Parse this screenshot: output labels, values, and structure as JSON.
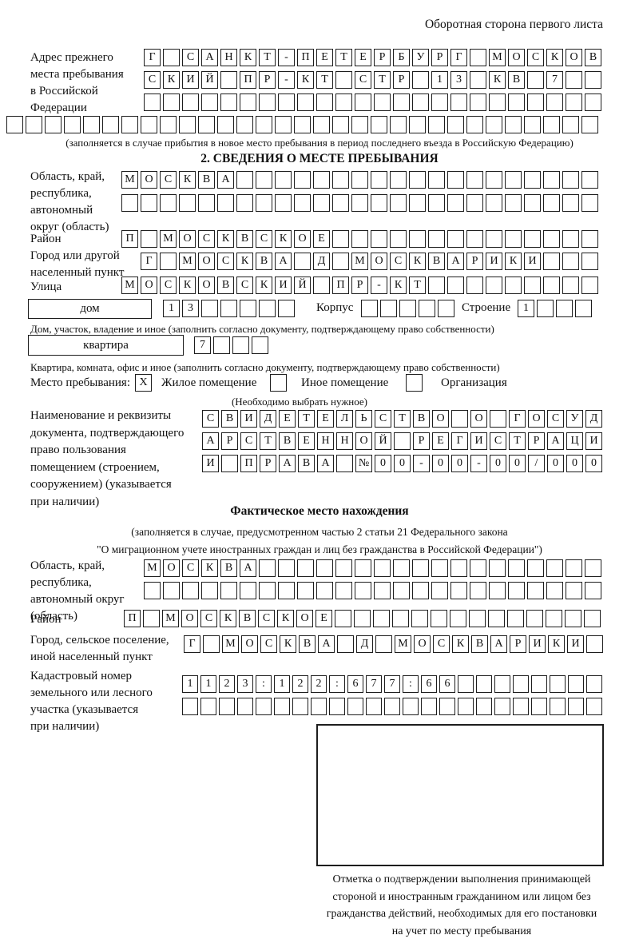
{
  "page": {
    "header_note": "Оборотная сторона первого листа"
  },
  "prev_address": {
    "label": "Адрес прежнего\nместа пребывания\nв Российской\nФедерации",
    "rows": [
      "Г САНКТ-ПЕТЕРБУРГ МОСКОВ",
      "СКИЙ ПР-КТ СТР 13 КВ 7  ",
      "                        ",
      "                               "
    ],
    "note": "(заполняется в случае прибытия в новое место пребывания в период последнего въезда в Российскую Федерацию)"
  },
  "section2": {
    "title": "2. СВЕДЕНИЯ О МЕСТЕ ПРЕБЫВАНИЯ",
    "region": {
      "label": "Область, край,\nреспублика,\nавтономный\nокруг (область)",
      "rows": [
        "МОСКВА                   ",
        "                         "
      ]
    },
    "district": {
      "label": "Район",
      "row": "П МОСКВСКОЕ              "
    },
    "city": {
      "label": "Город или другой\nнаселенный пункт",
      "row": "Г МОСКВА Д МОСКВАРИКИ   "
    },
    "street": {
      "label": "Улица",
      "row": "МОСКОВСКИЙ ПР-КТ         "
    },
    "house": {
      "box_label": "дом",
      "cells": "13     ",
      "korpus_label": "Корпус",
      "korpus_cells": "     ",
      "stroenie_label": "Строение",
      "stroenie_cells": "1   ",
      "note": "Дом, участок, владение и иное (заполнить согласно документу, подтверждающему право собственности)"
    },
    "apartment": {
      "box_label": "квартира",
      "cells": "7   ",
      "note": "Квартира, комната, офис и иное (заполнить согласно документу, подтверждающему право собственности)"
    },
    "stay_type": {
      "label": "Место пребывания:",
      "options": [
        {
          "label": "Жилое помещение",
          "checked": "X"
        },
        {
          "label": "Иное помещение",
          "checked": " "
        },
        {
          "label": "Организация",
          "checked": " "
        }
      ],
      "note": "(Необходимо выбрать нужное)"
    },
    "document": {
      "label": "Наименование и реквизиты\nдокумента, подтверждающего\nправо пользования\nпомещением (строением,\nсооружением) (указывается\nпри наличии)",
      "rows": [
        "СВИДЕТЕЛЬСТВО О ГОСУД",
        "АРСТВЕННОЙ РЕГИСТРАЦИ",
        "И ПРАВА №00-00-00/000"
      ]
    }
  },
  "actual_location": {
    "title": "Фактическое место нахождения",
    "subtitle1": "(заполняется в случае, предусмотренном частью 2 статьи 21 Федерального закона",
    "subtitle2": "\"О миграционном учете иностранных граждан и лиц без гражданства в Российской Федерации\")",
    "region": {
      "label": "Область, край,\nреспублика,\nавтономный округ\n(область)",
      "rows": [
        "МОСКВА                  ",
        "                        "
      ]
    },
    "district": {
      "label": "Район",
      "row": "П МОСКВСКОЕ              "
    },
    "settlement": {
      "label": "Город, сельское поселение,\nиной населенный пункт",
      "row": "Г МОСКВА Д МОСКВАРИКИ "
    },
    "cadastral": {
      "label": "Кадастровый номер\nземельного или лесного\nучастка (указывается\nпри наличии)",
      "rows": [
        "1123:122:677:66        ",
        "                       "
      ]
    },
    "stamp_caption": "Отметка о подтверждении выполнения принимающей\nстороной и иностранным гражданином или лицом без\nгражданства действий, необходимых для его постановки\nна учет по месту пребывания"
  }
}
